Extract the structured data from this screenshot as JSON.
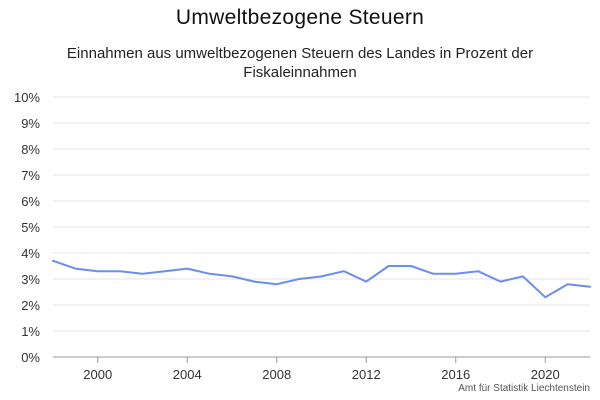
{
  "chart_data": {
    "type": "line",
    "title": "Umweltbezogene Steuern",
    "subtitle": "Einnahmen aus umweltbezogenen Steuern des Landes in Prozent der Fiskaleinnahmen",
    "xlabel": "",
    "ylabel": "",
    "credit": "Amt für Statistik Liechtenstein",
    "line_color": "#6a8df0",
    "grid": true,
    "xlim": [
      1998,
      2022
    ],
    "ylim": [
      0,
      10
    ],
    "x_ticks": [
      2000,
      2004,
      2008,
      2012,
      2016,
      2020
    ],
    "y_ticks": [
      0,
      1,
      2,
      3,
      4,
      5,
      6,
      7,
      8,
      9,
      10
    ],
    "y_tick_labels": [
      "0%",
      "1%",
      "2%",
      "3%",
      "4%",
      "5%",
      "6%",
      "7%",
      "8%",
      "9%",
      "10%"
    ],
    "series": [
      {
        "x": [
          1998,
          1999,
          2000,
          2001,
          2002,
          2003,
          2004,
          2005,
          2006,
          2007,
          2008,
          2009,
          2010,
          2011,
          2012,
          2013,
          2014,
          2015,
          2016,
          2017,
          2018,
          2019,
          2020,
          2021,
          2022
        ],
        "values": [
          3.7,
          3.4,
          3.3,
          3.3,
          3.2,
          3.3,
          3.4,
          3.2,
          3.1,
          2.9,
          2.8,
          3.0,
          3.1,
          3.3,
          2.9,
          3.5,
          3.5,
          3.2,
          3.2,
          3.3,
          2.9,
          3.1,
          2.3,
          2.8,
          2.7
        ]
      }
    ]
  }
}
